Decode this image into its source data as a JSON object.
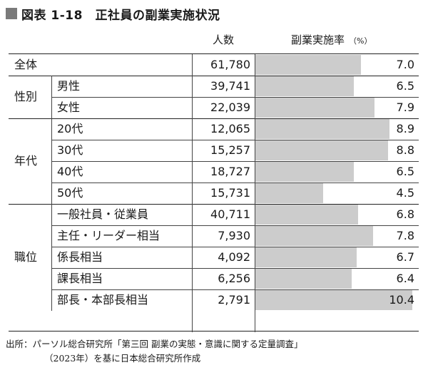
{
  "title": "図表 1-18　正社員の副業実施状況",
  "header": {
    "persons": "人数",
    "rate": "副業実施率",
    "rate_unit": "（%）"
  },
  "chart_data": {
    "type": "bar",
    "title": "図表 1-18　正社員の副業実施状況",
    "columns": [
      "人数",
      "副業実施率（%）"
    ],
    "groups": [
      {
        "label": "全体",
        "rows": [
          {
            "label": "全体",
            "persons": "61,780",
            "rate": 7.0
          }
        ]
      },
      {
        "label": "性別",
        "rows": [
          {
            "label": "男性",
            "persons": "39,741",
            "rate": 6.5
          },
          {
            "label": "女性",
            "persons": "22,039",
            "rate": 7.9
          }
        ]
      },
      {
        "label": "年代",
        "rows": [
          {
            "label": "20代",
            "persons": "12,065",
            "rate": 8.9
          },
          {
            "label": "30代",
            "persons": "15,257",
            "rate": 8.8
          },
          {
            "label": "40代",
            "persons": "18,727",
            "rate": 6.5
          },
          {
            "label": "50代",
            "persons": "15,731",
            "rate": 4.5
          }
        ]
      },
      {
        "label": "職位",
        "rows": [
          {
            "label": "一般社員・従業員",
            "persons": "40,711",
            "rate": 6.8
          },
          {
            "label": "主任・リーダー相当",
            "persons": "7,930",
            "rate": 7.8
          },
          {
            "label": "係長相当",
            "persons": "4,092",
            "rate": 6.7
          },
          {
            "label": "課長相当",
            "persons": "6,256",
            "rate": 6.4
          },
          {
            "label": "部長・本部長相当",
            "persons": "2,791",
            "rate": 10.4
          }
        ]
      }
    ],
    "rate_max": 10.4,
    "bar_color": "#cccccc"
  },
  "footer": {
    "line1": "出所：パーソル総合研究所「第三回 副業の実態・意識に関する定量調査」",
    "line2": "（2023年）を基に日本総合研究所作成"
  }
}
